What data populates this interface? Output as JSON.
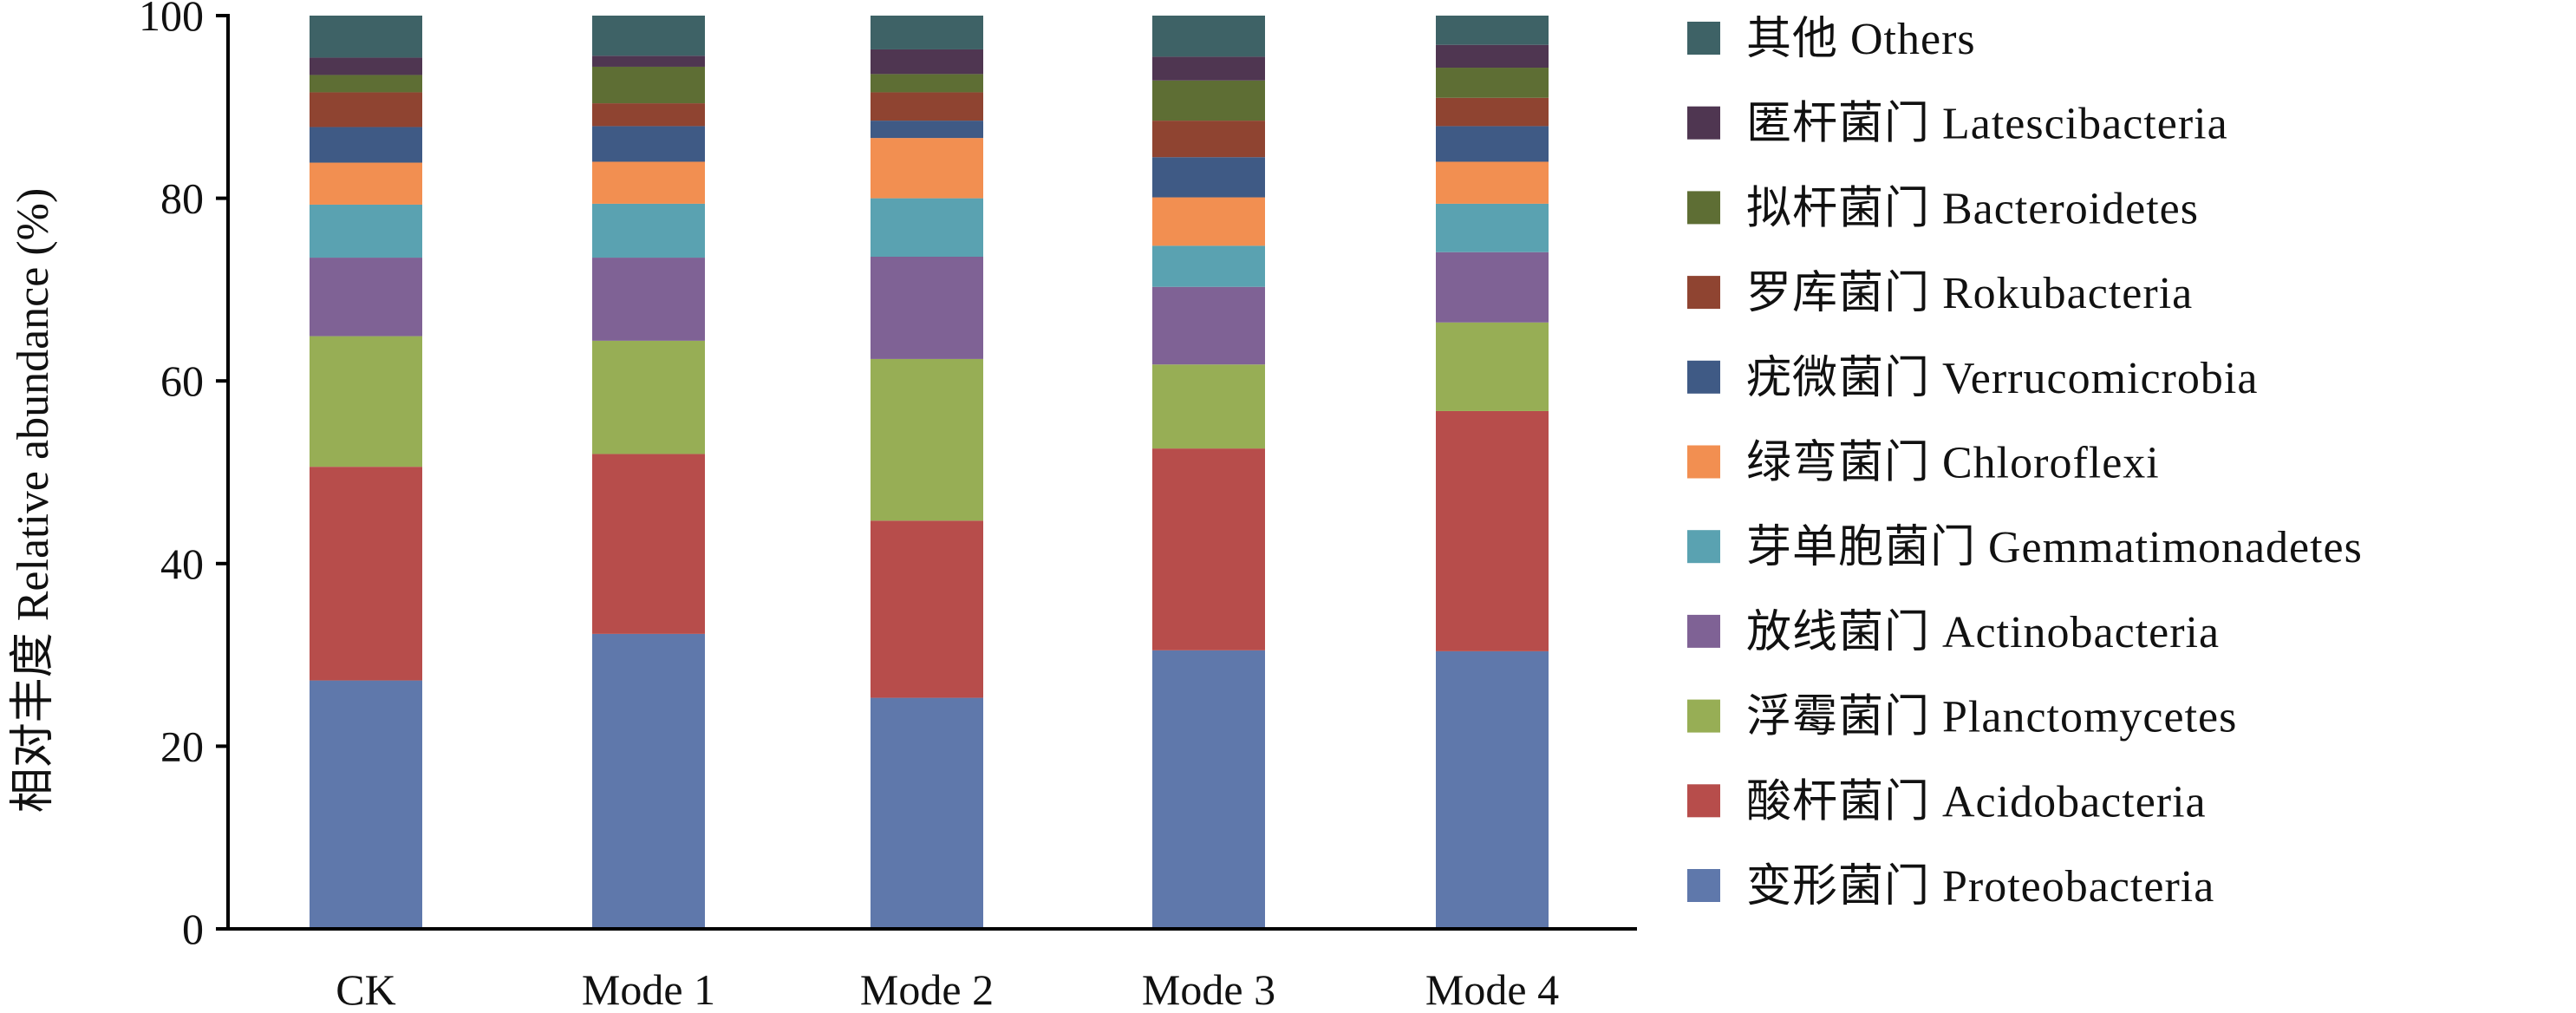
{
  "chart_data": {
    "type": "bar",
    "stacked": true,
    "categories": [
      "CK",
      "Mode 1",
      "Mode 2",
      "Mode 3",
      "Mode 4"
    ],
    "ylabel": "相对丰度 Relative abundance (%)",
    "xlabel": "",
    "ylim": [
      0,
      100
    ],
    "yticks": [
      0,
      20,
      40,
      60,
      80,
      100
    ],
    "grid": false,
    "legend_position": "right",
    "series": [
      {
        "name": "变形菌门 Proteobacteria",
        "color": "#5f78ab",
        "values": [
          27.2,
          32.3,
          25.3,
          30.5,
          30.4
        ]
      },
      {
        "name": "酸杆菌门 Acidobacteria",
        "color": "#b74d4b",
        "values": [
          23.4,
          19.7,
          19.4,
          22.1,
          26.3
        ]
      },
      {
        "name": "浮霉菌门 Planctomycetes",
        "color": "#97ae55",
        "values": [
          14.3,
          12.4,
          17.7,
          9.2,
          9.7
        ]
      },
      {
        "name": "放线菌门 Actinobacteria",
        "color": "#7f6295",
        "values": [
          8.6,
          9.1,
          11.2,
          8.5,
          7.7
        ]
      },
      {
        "name": "芽单胞菌门 Gemmatimonadetes",
        "color": "#5aa2b1",
        "values": [
          5.8,
          5.9,
          6.4,
          4.5,
          5.3
        ]
      },
      {
        "name": "绿弯菌门 Chloroflexi",
        "color": "#f28f51",
        "values": [
          4.6,
          4.6,
          6.6,
          5.3,
          4.6
        ]
      },
      {
        "name": "疣微菌门 Verrucomicrobia",
        "color": "#3f5a85",
        "values": [
          3.9,
          3.9,
          1.9,
          4.4,
          3.9
        ]
      },
      {
        "name": "罗库菌门 Rokubacteria",
        "color": "#8f4431",
        "values": [
          3.8,
          2.5,
          3.1,
          4.0,
          3.1
        ]
      },
      {
        "name": "拟杆菌门 Bacteroidetes",
        "color": "#5e6e34",
        "values": [
          1.9,
          4.0,
          2.0,
          4.4,
          3.3
        ]
      },
      {
        "name": "匿杆菌门 Latescibacteria",
        "color": "#4f3651",
        "values": [
          1.9,
          1.2,
          2.7,
          2.6,
          2.5
        ]
      },
      {
        "name": "其他 Others",
        "color": "#3e6266",
        "values": [
          4.6,
          4.4,
          3.7,
          4.5,
          3.2
        ]
      }
    ]
  }
}
